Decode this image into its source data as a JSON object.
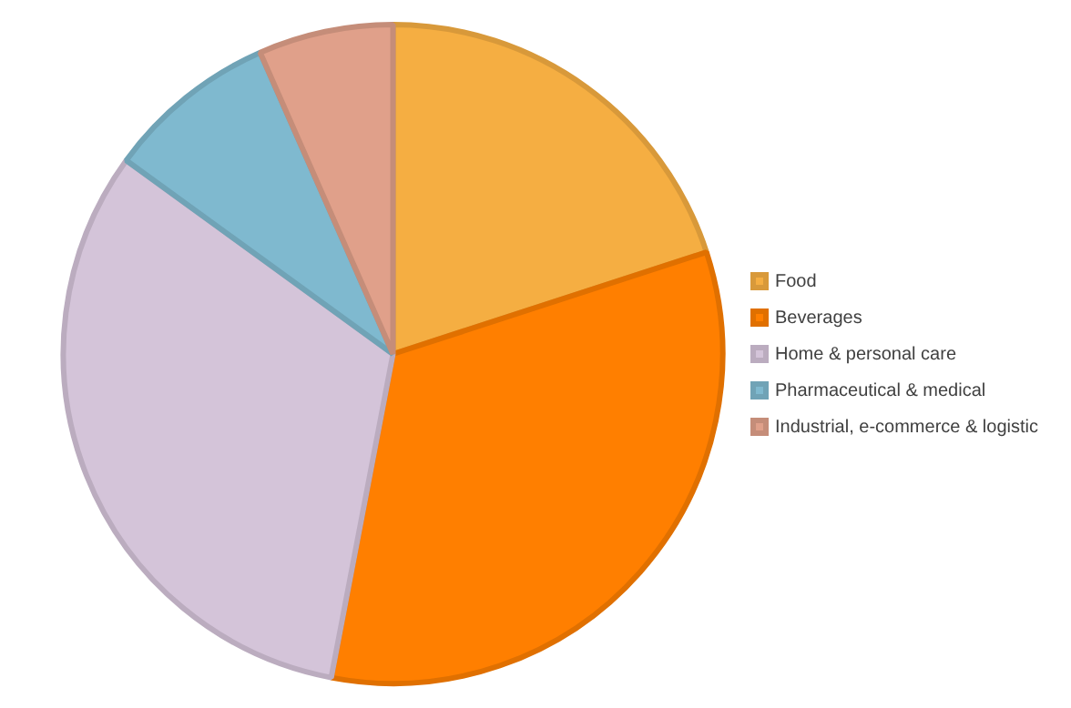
{
  "chart_data": {
    "type": "pie",
    "categories": [
      "Food",
      "Beverages",
      "Home & personal care",
      "Pharmaceutical & medical",
      "Industrial, e-commerce & logistic"
    ],
    "values": [
      20,
      33,
      32,
      8.4,
      6.6
    ],
    "colors": [
      "#f5ae42",
      "#ff7f00",
      "#d4c4d9",
      "#7fb9cf",
      "#e0a08a"
    ],
    "legend": "right"
  }
}
